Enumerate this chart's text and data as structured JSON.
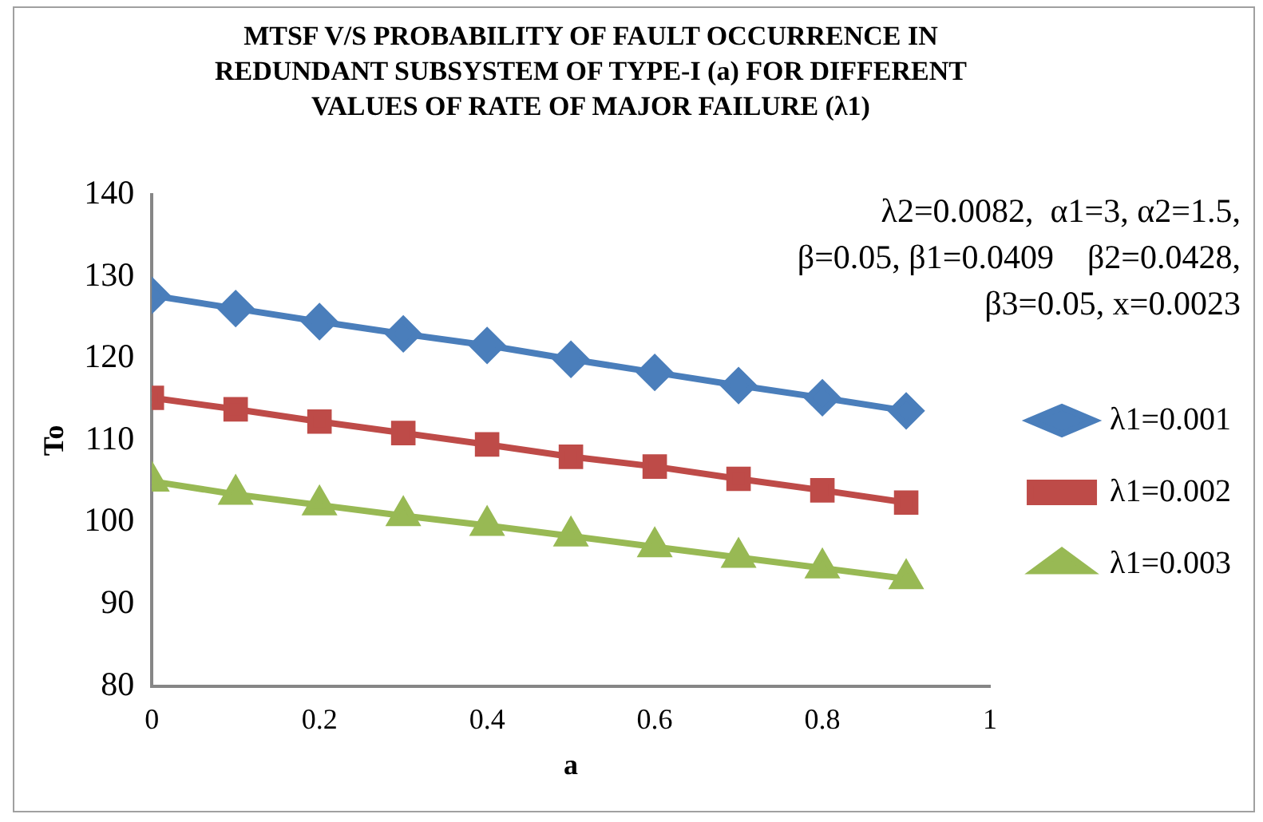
{
  "chart_data": {
    "type": "line",
    "title": "MTSF V/S PROBABILITY OF FAULT OCCURRENCE IN REDUNDANT SUBSYSTEM OF TYPE-I (a) FOR DIFFERENT VALUES OF RATE OF MAJOR FAILURE (λ1)",
    "xlabel": "a",
    "ylabel": "To",
    "annotations": [
      "λ2=0.0082,  α1=3, α2=1.5,",
      "β=0.05, β1=0.0409    β2=0.0428,",
      "β3=0.05, x=0.0023"
    ],
    "x": [
      0,
      0.1,
      0.2,
      0.3,
      0.4,
      0.5,
      0.6,
      0.7,
      0.8,
      0.9
    ],
    "series": [
      {
        "name": "λ1=0.001",
        "color": "#4a7ebb",
        "marker": "diamond",
        "values": [
          127.7,
          126.1,
          124.5,
          123.0,
          121.6,
          119.9,
          118.3,
          116.7,
          115.2,
          113.6
        ]
      },
      {
        "name": "λ1=0.002",
        "color": "#be4b48",
        "marker": "square",
        "values": [
          115.2,
          113.8,
          112.3,
          110.9,
          109.5,
          108.0,
          106.8,
          105.3,
          103.9,
          102.4
        ]
      },
      {
        "name": "λ1=0.003",
        "color": "#98b954",
        "marker": "triangle",
        "values": [
          105.0,
          103.4,
          102.1,
          100.8,
          99.6,
          98.3,
          97.0,
          95.7,
          94.4,
          93.1
        ]
      }
    ],
    "xlim": [
      0,
      1
    ],
    "xticks": [
      0,
      0.2,
      0.4,
      0.6,
      0.8,
      1
    ],
    "ylim": [
      80,
      140
    ],
    "yticks": [
      80,
      90,
      100,
      110,
      120,
      130,
      140
    ],
    "grid": false,
    "legend": "right",
    "line_style": "solid"
  }
}
